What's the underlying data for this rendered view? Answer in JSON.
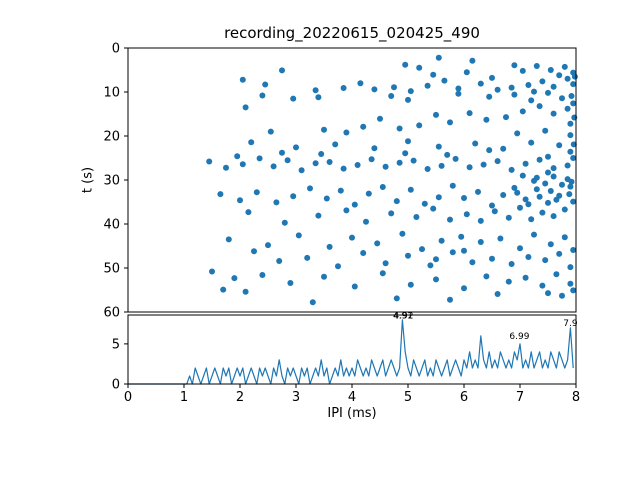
{
  "figure": {
    "title": "recording_20220615_020425_490",
    "background_color": "#ffffff",
    "accent_color": "#1f77b4"
  },
  "chart_data": [
    {
      "type": "scatter",
      "title": "recording_20220615_020425_490",
      "xlabel": "IPI (ms)",
      "ylabel": "t (s)",
      "xlim": [
        0,
        8
      ],
      "ylim": [
        0,
        60
      ],
      "y_inverted": true,
      "grid": false,
      "x_ticks": [
        0,
        1,
        2,
        3,
        4,
        5,
        6,
        7,
        8
      ],
      "y_ticks": [
        0,
        10,
        20,
        30,
        40,
        50,
        60
      ],
      "marker_color": "#1f77b4",
      "points": [
        [
          5.55,
          2.2
        ],
        [
          4.95,
          3.8
        ],
        [
          5.2,
          4.5
        ],
        [
          6.05,
          5.5
        ],
        [
          6.5,
          6.8
        ],
        [
          6.9,
          3.9
        ],
        [
          7.05,
          5.2
        ],
        [
          7.3,
          4.1
        ],
        [
          7.55,
          5.0
        ],
        [
          7.8,
          4.3
        ],
        [
          7.95,
          5.6
        ],
        [
          7.7,
          6.2
        ],
        [
          7.85,
          7.0
        ],
        [
          7.95,
          8.2
        ],
        [
          7.6,
          8.8
        ],
        [
          7.4,
          7.6
        ],
        [
          7.15,
          8.4
        ],
        [
          6.85,
          9.0
        ],
        [
          6.6,
          9.5
        ],
        [
          6.3,
          8.1
        ],
        [
          5.9,
          9.2
        ],
        [
          5.65,
          7.4
        ],
        [
          5.35,
          8.6
        ],
        [
          5.05,
          9.8
        ],
        [
          4.75,
          8.9
        ],
        [
          4.4,
          9.4
        ],
        [
          4.15,
          8.0
        ],
        [
          3.85,
          9.1
        ],
        [
          2.05,
          7.2
        ],
        [
          2.45,
          8.3
        ],
        [
          2.75,
          5.1
        ],
        [
          3.35,
          9.6
        ],
        [
          7.25,
          9.9
        ],
        [
          6.15,
          2.9
        ],
        [
          5.45,
          6.1
        ],
        [
          2.4,
          10.8
        ],
        [
          2.95,
          11.5
        ],
        [
          3.4,
          11.2
        ],
        [
          4.7,
          10.9
        ],
        [
          5.0,
          11.8
        ],
        [
          5.9,
          10.4
        ],
        [
          6.45,
          11.1
        ],
        [
          6.9,
          10.6
        ],
        [
          7.2,
          11.9
        ],
        [
          7.5,
          10.2
        ],
        [
          7.75,
          11.4
        ],
        [
          7.95,
          12.6
        ],
        [
          7.85,
          13.8
        ],
        [
          7.6,
          14.9
        ],
        [
          7.35,
          13.2
        ],
        [
          7.05,
          14.4
        ],
        [
          6.75,
          15.7
        ],
        [
          6.4,
          16.3
        ],
        [
          6.1,
          14.8
        ],
        [
          5.75,
          16.9
        ],
        [
          5.5,
          15.2
        ],
        [
          5.2,
          17.6
        ],
        [
          4.85,
          18.3
        ],
        [
          4.5,
          16.1
        ],
        [
          4.2,
          17.9
        ],
        [
          3.9,
          19.2
        ],
        [
          3.5,
          18.6
        ],
        [
          2.55,
          19.0
        ],
        [
          7.9,
          17.2
        ],
        [
          7.45,
          18.8
        ],
        [
          6.95,
          19.4
        ],
        [
          2.1,
          13.5
        ],
        [
          1.45,
          25.8
        ],
        [
          1.75,
          27.2
        ],
        [
          2.05,
          26.4
        ],
        [
          2.35,
          25.1
        ],
        [
          2.6,
          26.9
        ],
        [
          2.85,
          25.5
        ],
        [
          3.1,
          27.8
        ],
        [
          3.35,
          26.2
        ],
        [
          3.6,
          25.9
        ],
        [
          3.85,
          27.4
        ],
        [
          4.1,
          26.6
        ],
        [
          4.35,
          25.3
        ],
        [
          4.6,
          27.0
        ],
        [
          4.85,
          26.1
        ],
        [
          5.1,
          25.6
        ],
        [
          5.35,
          27.5
        ],
        [
          5.6,
          26.8
        ],
        [
          5.85,
          25.2
        ],
        [
          6.1,
          27.1
        ],
        [
          6.35,
          26.5
        ],
        [
          6.6,
          25.7
        ],
        [
          6.85,
          27.7
        ],
        [
          7.1,
          26.3
        ],
        [
          7.35,
          25.4
        ],
        [
          7.6,
          27.3
        ],
        [
          7.85,
          26.7
        ],
        [
          7.95,
          25.0
        ],
        [
          2.2,
          21.4
        ],
        [
          3.0,
          22.6
        ],
        [
          3.7,
          21.9
        ],
        [
          4.4,
          22.8
        ],
        [
          5.0,
          21.2
        ],
        [
          5.55,
          22.4
        ],
        [
          6.2,
          21.7
        ],
        [
          6.7,
          22.9
        ],
        [
          7.2,
          21.5
        ],
        [
          7.7,
          22.1
        ],
        [
          7.9,
          23.6
        ],
        [
          4.95,
          23.9
        ],
        [
          5.7,
          24.3
        ],
        [
          6.45,
          23.2
        ],
        [
          2.75,
          23.8
        ],
        [
          1.95,
          24.6
        ],
        [
          3.45,
          24.1
        ],
        [
          7.5,
          24.7
        ],
        [
          1.65,
          33.2
        ],
        [
          2.0,
          34.6
        ],
        [
          2.3,
          32.8
        ],
        [
          2.65,
          35.1
        ],
        [
          2.95,
          33.7
        ],
        [
          3.25,
          31.9
        ],
        [
          3.55,
          34.2
        ],
        [
          3.8,
          32.4
        ],
        [
          4.05,
          35.6
        ],
        [
          4.3,
          33.1
        ],
        [
          4.55,
          31.6
        ],
        [
          4.8,
          34.8
        ],
        [
          5.05,
          32.2
        ],
        [
          5.3,
          35.4
        ],
        [
          5.55,
          33.9
        ],
        [
          5.8,
          31.3
        ],
        [
          6.0,
          34.1
        ],
        [
          6.25,
          32.7
        ],
        [
          6.5,
          35.8
        ],
        [
          6.7,
          33.4
        ],
        [
          6.9,
          31.8
        ],
        [
          7.1,
          34.4
        ],
        [
          7.3,
          32.1
        ],
        [
          7.5,
          35.2
        ],
        [
          7.7,
          33.6
        ],
        [
          7.9,
          31.5
        ],
        [
          7.95,
          34.9
        ],
        [
          7.8,
          36.7
        ],
        [
          7.6,
          38.2
        ],
        [
          7.4,
          37.4
        ],
        [
          7.2,
          38.9
        ],
        [
          7.0,
          36.3
        ],
        [
          6.8,
          38.6
        ],
        [
          6.55,
          37.1
        ],
        [
          6.3,
          39.3
        ],
        [
          6.05,
          37.8
        ],
        [
          5.75,
          39.0
        ],
        [
          5.45,
          36.5
        ],
        [
          5.15,
          38.4
        ],
        [
          4.7,
          37.6
        ],
        [
          4.25,
          39.5
        ],
        [
          3.9,
          36.9
        ],
        [
          3.4,
          38.1
        ],
        [
          2.8,
          39.7
        ],
        [
          2.15,
          37.3
        ],
        [
          1.8,
          43.5
        ],
        [
          2.5,
          44.8
        ],
        [
          3.05,
          42.6
        ],
        [
          3.6,
          45.2
        ],
        [
          4.0,
          43.1
        ],
        [
          4.45,
          44.4
        ],
        [
          4.9,
          42.2
        ],
        [
          5.25,
          45.7
        ],
        [
          5.6,
          43.8
        ],
        [
          5.95,
          42.9
        ],
        [
          6.3,
          44.1
        ],
        [
          6.65,
          43.3
        ],
        [
          7.0,
          45.5
        ],
        [
          7.25,
          42.4
        ],
        [
          7.55,
          44.6
        ],
        [
          7.8,
          43.0
        ],
        [
          7.95,
          45.9
        ],
        [
          7.7,
          46.8
        ],
        [
          7.45,
          48.2
        ],
        [
          7.15,
          47.5
        ],
        [
          6.85,
          49.1
        ],
        [
          6.5,
          47.9
        ],
        [
          6.15,
          48.7
        ],
        [
          5.8,
          46.4
        ],
        [
          5.4,
          49.4
        ],
        [
          5.0,
          47.2
        ],
        [
          4.6,
          48.9
        ],
        [
          4.2,
          46.6
        ],
        [
          3.75,
          49.6
        ],
        [
          3.2,
          47.7
        ],
        [
          2.7,
          48.4
        ],
        [
          2.25,
          46.2
        ],
        [
          7.9,
          49.8
        ],
        [
          6.0,
          46.1
        ],
        [
          5.5,
          48.0
        ],
        [
          1.5,
          50.8
        ],
        [
          1.9,
          52.3
        ],
        [
          2.4,
          51.6
        ],
        [
          2.9,
          53.4
        ],
        [
          3.5,
          52.0
        ],
        [
          4.05,
          54.2
        ],
        [
          4.55,
          51.2
        ],
        [
          5.05,
          53.8
        ],
        [
          5.5,
          52.6
        ],
        [
          6.0,
          54.6
        ],
        [
          6.4,
          51.9
        ],
        [
          6.8,
          53.1
        ],
        [
          7.1,
          52.2
        ],
        [
          7.4,
          54.0
        ],
        [
          7.65,
          51.4
        ],
        [
          7.9,
          53.6
        ],
        [
          7.95,
          55.1
        ],
        [
          7.75,
          56.3
        ],
        [
          7.5,
          55.7
        ],
        [
          3.3,
          57.8
        ],
        [
          2.1,
          55.4
        ],
        [
          4.8,
          56.9
        ],
        [
          6.6,
          55.9
        ],
        [
          5.75,
          57.2
        ],
        [
          1.7,
          54.9
        ],
        [
          7.3,
          29.5
        ],
        [
          7.45,
          30.8
        ],
        [
          7.6,
          29.2
        ],
        [
          7.75,
          31.1
        ],
        [
          7.85,
          29.8
        ],
        [
          7.92,
          30.4
        ],
        [
          7.55,
          32.5
        ],
        [
          7.35,
          33.8
        ],
        [
          7.65,
          34.5
        ],
        [
          7.88,
          33.2
        ],
        [
          7.25,
          30.2
        ],
        [
          7.05,
          29.0
        ],
        [
          6.95,
          32.9
        ],
        [
          7.15,
          35.5
        ],
        [
          7.5,
          28.3
        ],
        [
          7.98,
          6.5
        ],
        [
          7.92,
          10.9
        ],
        [
          7.97,
          15.8
        ],
        [
          7.9,
          19.8
        ],
        [
          7.96,
          21.9
        ]
      ]
    },
    {
      "type": "line",
      "title": "",
      "xlabel": "IPI (ms)",
      "ylabel": "",
      "xlim": [
        0,
        8
      ],
      "ylim": [
        0,
        8.6
      ],
      "grid": false,
      "x_ticks": [
        0,
        1,
        2,
        3,
        4,
        5,
        6,
        7,
        8
      ],
      "y_ticks": [
        0,
        5
      ],
      "line_color": "#1f77b4",
      "bin_start": 0,
      "bin_step": 0.05,
      "values": [
        0,
        0,
        0,
        0,
        0,
        0,
        0,
        0,
        0,
        0,
        0,
        0,
        0,
        0,
        0,
        0,
        0,
        0,
        0,
        0,
        0,
        0,
        1,
        0,
        2,
        1,
        0,
        1,
        2,
        0,
        1,
        2,
        1,
        0,
        2,
        1,
        2,
        0,
        1,
        2,
        1,
        2,
        0,
        1,
        2,
        1,
        0,
        2,
        1,
        2,
        1,
        0,
        2,
        1,
        3,
        1,
        0,
        2,
        1,
        2,
        1,
        0,
        2,
        1,
        2,
        0,
        1,
        2,
        1,
        3,
        1,
        2,
        0,
        1,
        2,
        1,
        3,
        1,
        2,
        1,
        2,
        1,
        3,
        2,
        1,
        2,
        1,
        3,
        2,
        1,
        2,
        3,
        1,
        2,
        3,
        2,
        1,
        2,
        8,
        4,
        2,
        1,
        3,
        2,
        1,
        2,
        3,
        1,
        2,
        1,
        3,
        2,
        1,
        2,
        3,
        1,
        2,
        3,
        2,
        1,
        3,
        2,
        4,
        2,
        3,
        2,
        6,
        3,
        2,
        4,
        2,
        3,
        2,
        4,
        3,
        2,
        3,
        2,
        4,
        3,
        5,
        2,
        3,
        2,
        4,
        2,
        3,
        4,
        2,
        3,
        2,
        4,
        3,
        2,
        4,
        3,
        2,
        3,
        7,
        2
      ],
      "annotations": [
        {
          "x": 4.91,
          "y": 8.15,
          "label": "4.91"
        },
        {
          "x": 4.92,
          "y": 8.15,
          "label": "4.92"
        },
        {
          "x": 6.99,
          "y": 5.6,
          "label": "6.99"
        },
        {
          "x": 7.9,
          "y": 7.25,
          "label": "7.9"
        }
      ]
    }
  ]
}
